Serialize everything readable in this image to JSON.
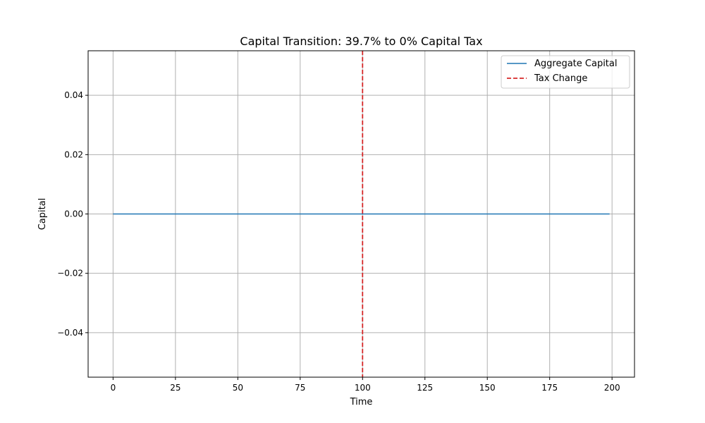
{
  "chart_data": {
    "type": "line",
    "title": "Capital Transition: 39.7% to 0% Capital Tax",
    "xlabel": "Time",
    "ylabel": "Capital",
    "xlim": [
      -10,
      209
    ],
    "ylim": [
      -0.055,
      0.055
    ],
    "x_ticks": [
      0,
      25,
      50,
      75,
      100,
      125,
      150,
      175,
      200
    ],
    "y_ticks": [
      -0.04,
      -0.02,
      0.0,
      0.02,
      0.04
    ],
    "y_tick_labels": [
      "−0.04",
      "−0.02",
      "0.00",
      "0.02",
      "0.04"
    ],
    "grid": true,
    "legend_position": "top-right",
    "series": [
      {
        "name": "Aggregate Capital",
        "color": "#1f77b4",
        "style": "solid",
        "x": [
          0,
          199
        ],
        "y": [
          0,
          0
        ]
      }
    ],
    "vlines": [
      {
        "name": "Tax Change",
        "x": 100,
        "color": "#d62728",
        "style": "dashed"
      }
    ]
  }
}
